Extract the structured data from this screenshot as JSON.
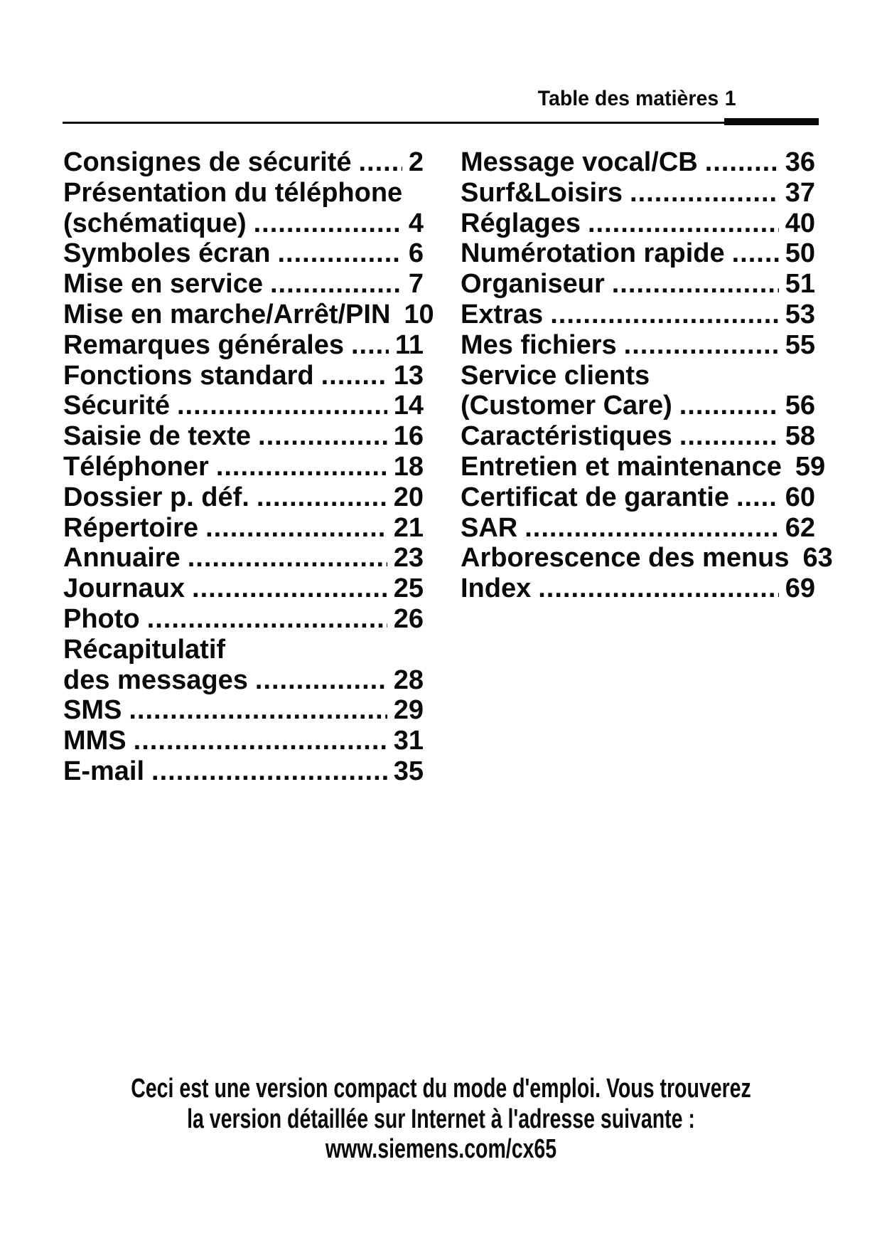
{
  "colors": {
    "ink": "#0a0a0a",
    "paper": "#ffffff"
  },
  "header": {
    "title": "Table des matières",
    "page_number": "1"
  },
  "toc": {
    "columns": [
      {
        "rows": [
          {
            "label": "Consignes de sécurité",
            "page": "2"
          },
          {
            "label": "Présentation du téléphone",
            "page": ""
          },
          {
            "label": "(schématique)",
            "page": "4"
          },
          {
            "label": "Symboles écran",
            "page": "6"
          },
          {
            "label": "Mise en service",
            "page": "7"
          },
          {
            "label": "Mise en marche/Arrêt/PIN",
            "page": "10"
          },
          {
            "label": "Remarques générales",
            "page": "11"
          },
          {
            "label": "Fonctions standard",
            "page": "13"
          },
          {
            "label": "Sécurité",
            "page": "14"
          },
          {
            "label": "Saisie de texte",
            "page": "16"
          },
          {
            "label": "Téléphoner",
            "page": "18"
          },
          {
            "label": "Dossier p. déf.",
            "page": "20"
          },
          {
            "label": "Répertoire",
            "page": "21"
          },
          {
            "label": "Annuaire",
            "page": "23"
          },
          {
            "label": "Journaux",
            "page": "25"
          },
          {
            "label": "Photo",
            "page": "26"
          },
          {
            "label": "Récapitulatif",
            "page": ""
          },
          {
            "label": "des messages",
            "page": "28"
          },
          {
            "label": "SMS",
            "page": "29"
          },
          {
            "label": "MMS",
            "page": "31"
          },
          {
            "label": "E-mail",
            "page": "35"
          }
        ]
      },
      {
        "rows": [
          {
            "label": "Message vocal/CB",
            "page": "36"
          },
          {
            "label": "Surf&Loisirs",
            "page": "37"
          },
          {
            "label": "Réglages",
            "page": "40"
          },
          {
            "label": "Numérotation rapide",
            "page": "50"
          },
          {
            "label": "Organiseur",
            "page": "51"
          },
          {
            "label": "Extras",
            "page": "53"
          },
          {
            "label": "Mes fichiers",
            "page": "55"
          },
          {
            "label": "Service clients",
            "page": ""
          },
          {
            "label": "(Customer Care)",
            "page": "56"
          },
          {
            "label": "Caractéristiques",
            "page": "58"
          },
          {
            "label": "Entretien et maintenance",
            "page": "59"
          },
          {
            "label": "Certificat de garantie",
            "page": "60"
          },
          {
            "label": "SAR",
            "page": "62"
          },
          {
            "label": "Arborescence des menus",
            "page": "63"
          },
          {
            "label": "Index",
            "page": "69"
          }
        ]
      }
    ]
  },
  "footer": {
    "lines": [
      "Ceci est une version compact du mode d'emploi. Vous trouverez",
      "la version détaillée sur Internet à l'adresse suivante :",
      "www.siemens.com/cx65"
    ]
  }
}
